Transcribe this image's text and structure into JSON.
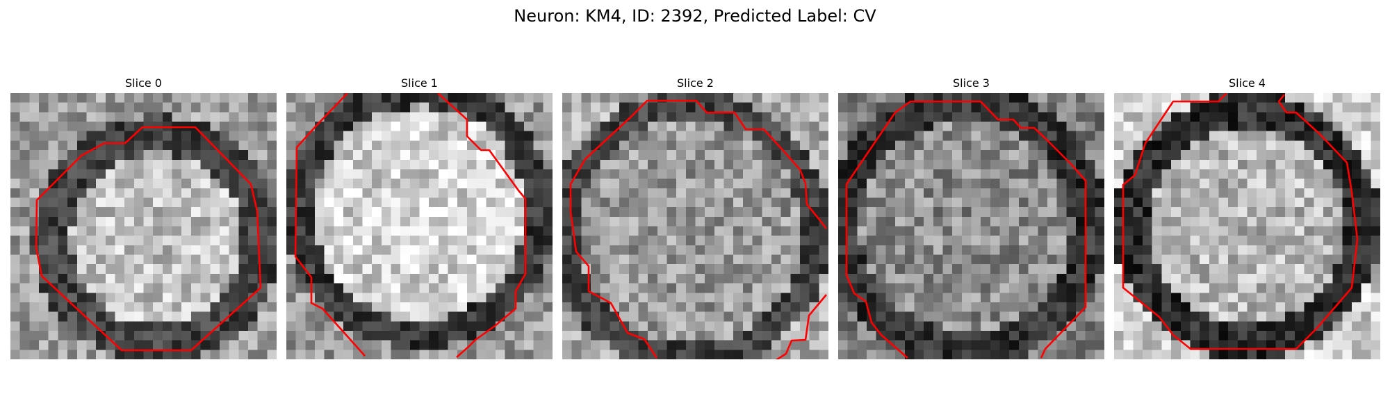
{
  "figure": {
    "title": "Neuron: KM4, ID: 2392, Predicted Label: CV",
    "contour_color": "#ff0000"
  },
  "slices": [
    {
      "title": "Slice 0"
    },
    {
      "title": "Slice 1"
    },
    {
      "title": "Slice 2"
    },
    {
      "title": "Slice 3"
    },
    {
      "title": "Slice 4"
    }
  ]
}
